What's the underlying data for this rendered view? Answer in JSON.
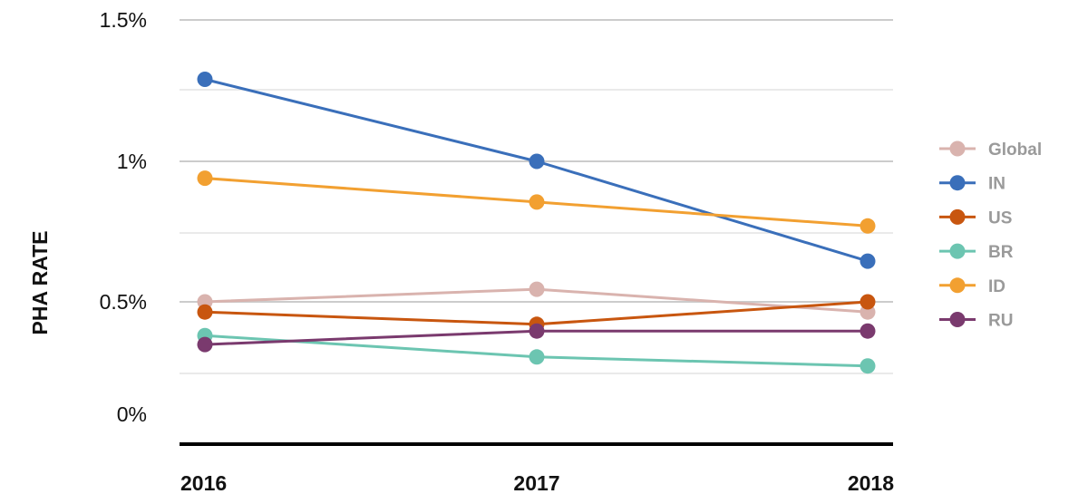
{
  "chart_data": {
    "type": "line",
    "ylabel": "PHA RATE",
    "xlabel": "",
    "x": [
      "2016",
      "2017",
      "2018"
    ],
    "y_ticks": [
      {
        "value": 0,
        "label": "0%"
      },
      {
        "value": 0.5,
        "label": "0.5%"
      },
      {
        "value": 1.0,
        "label": "1%"
      },
      {
        "value": 1.5,
        "label": "1.5%"
      }
    ],
    "ylim": [
      -0.1,
      1.5
    ],
    "grid": true,
    "legend_position": "right",
    "series": [
      {
        "name": "Global",
        "color": "#d9b3ae",
        "values": [
          0.5,
          0.545,
          0.455
        ]
      },
      {
        "name": "IN",
        "color": "#3a6fba",
        "values": [
          1.29,
          1.0,
          0.645
        ]
      },
      {
        "name": "US",
        "color": "#c8560f",
        "values": [
          0.455,
          0.4,
          0.5
        ]
      },
      {
        "name": "BR",
        "color": "#6cc5b1",
        "values": [
          0.35,
          0.255,
          0.215
        ]
      },
      {
        "name": "ID",
        "color": "#f2a031",
        "values": [
          0.94,
          0.855,
          0.77
        ]
      },
      {
        "name": "RU",
        "color": "#7a3a6e",
        "values": [
          0.31,
          0.37,
          0.37
        ]
      }
    ]
  }
}
